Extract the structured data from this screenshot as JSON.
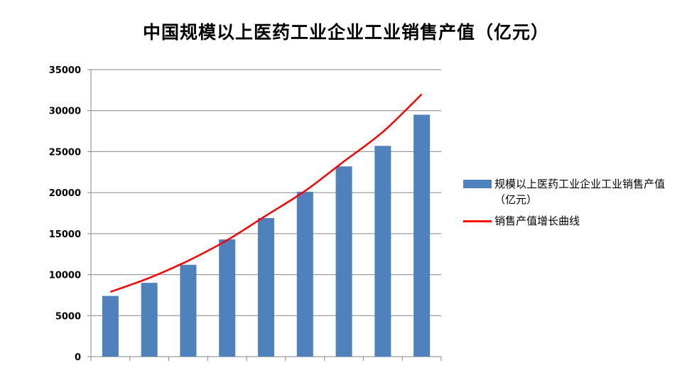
{
  "colors": {
    "bar": "#4f81bd",
    "curve": "#ff0000",
    "grid": "#868686",
    "axis": "#868686"
  },
  "chart_data": {
    "type": "bar",
    "title": "中国规模以上医药工业企业工业销售产值（亿元）",
    "xlabel": "",
    "ylabel": "",
    "ylim": [
      0,
      35000
    ],
    "yticks": [
      "0",
      "5000",
      "10000",
      "15000",
      "20000",
      "25000",
      "30000",
      "35000"
    ],
    "grid": true,
    "legend_position": "right",
    "categories": [
      "",
      "",
      "",
      "",
      "",
      "",
      "",
      "",
      ""
    ],
    "series": [
      {
        "name": "规模以上医药工业企业工业销售产值（亿元）",
        "type": "bar",
        "values": [
          7400,
          9000,
          11200,
          14300,
          16900,
          20100,
          23200,
          25700,
          29500
        ]
      },
      {
        "name": "销售产值增长曲线",
        "type": "line",
        "values": [
          7900,
          9600,
          11700,
          14200,
          17200,
          20200,
          23800,
          27400,
          32000
        ]
      }
    ]
  }
}
